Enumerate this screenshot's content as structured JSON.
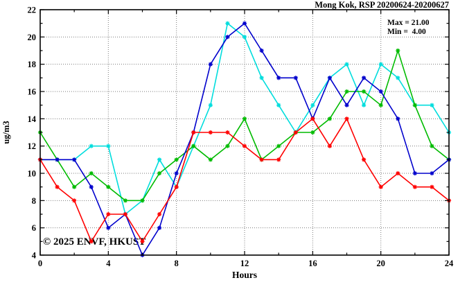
{
  "title": "Mong Kok, RSP 20200624-20200627",
  "stats": {
    "max_label": "Max = 21.00",
    "min_label": "Min =  4.00"
  },
  "watermark": "© 2025 ENVF, HKUST",
  "colors": {
    "frame": "#000000",
    "grid": "#7a7a7a",
    "watermark": "#d9d9d9"
  },
  "chart_data": {
    "type": "line",
    "x": [
      0,
      1,
      2,
      3,
      4,
      5,
      6,
      7,
      8,
      9,
      10,
      11,
      12,
      13,
      14,
      15,
      16,
      17,
      18,
      19,
      20,
      21,
      22,
      23,
      24
    ],
    "xlabel": "Hours",
    "ylabel": "ug/m3",
    "xlim": [
      0,
      24
    ],
    "ylim": [
      4,
      22
    ],
    "x_major_ticks": [
      0,
      4,
      8,
      12,
      16,
      20,
      24
    ],
    "x_minor_step": 2,
    "y_major_step": 2,
    "y_minor_step": 1,
    "grid": true,
    "legend": "none",
    "series": [
      {
        "name": "cyan",
        "color": "#00dddd",
        "values": [
          11,
          11,
          11,
          12,
          12,
          7,
          8,
          11,
          9,
          12,
          15,
          21,
          20,
          17,
          15,
          13,
          15,
          17,
          18,
          15,
          18,
          17,
          15,
          15,
          13
        ]
      },
      {
        "name": "green",
        "color": "#00bb00",
        "values": [
          13,
          11,
          9,
          10,
          9,
          8,
          8,
          10,
          11,
          12,
          11,
          12,
          14,
          11,
          12,
          13,
          13,
          14,
          16,
          16,
          15,
          19,
          15,
          12,
          11
        ]
      },
      {
        "name": "blue",
        "color": "#0000cc",
        "values": [
          11,
          11,
          11,
          9,
          6,
          7,
          4,
          6,
          10,
          13,
          18,
          20,
          21,
          19,
          17,
          17,
          14,
          17,
          15,
          17,
          16,
          14,
          10,
          10,
          11
        ]
      },
      {
        "name": "red",
        "color": "#ff0000",
        "values": [
          11,
          9,
          8,
          5,
          7,
          7,
          5,
          7,
          9,
          13,
          13,
          13,
          12,
          11,
          11,
          13,
          14,
          12,
          14,
          11,
          9,
          10,
          9,
          9,
          8
        ]
      }
    ]
  }
}
